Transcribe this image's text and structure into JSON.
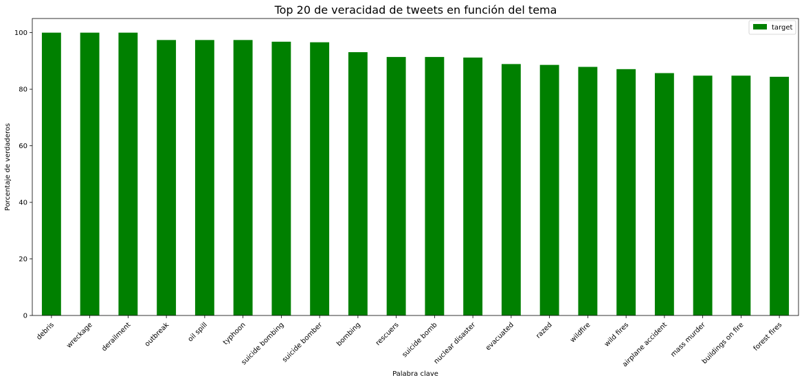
{
  "chart_data": {
    "type": "bar",
    "title": "Top 20 de veracidad de tweets en función del tema",
    "xlabel": "Palabra clave",
    "ylabel": "Porcentaje de verdaderos",
    "ylim": [
      0,
      105
    ],
    "yticks": [
      0,
      20,
      40,
      60,
      80,
      100
    ],
    "grid": false,
    "legend_position": "top-right",
    "categories": [
      "debris",
      "wreckage",
      "derailment",
      "outbreak",
      "oil spill",
      "typhoon",
      "suicide bombing",
      "suicide bomber",
      "bombing",
      "rescuers",
      "suicide bomb",
      "nuclear disaster",
      "evacuated",
      "razed",
      "wildfire",
      "wild fires",
      "airplane accident",
      "mass murder",
      "buildings on fire",
      "forest fires"
    ],
    "series": [
      {
        "name": "target",
        "color": "#008000",
        "values": [
          100,
          100,
          100,
          97.4,
          97.4,
          97.4,
          96.8,
          96.6,
          93.1,
          91.4,
          91.4,
          91.2,
          88.9,
          88.6,
          87.9,
          87.1,
          85.7,
          84.8,
          84.8,
          84.4
        ]
      }
    ]
  }
}
